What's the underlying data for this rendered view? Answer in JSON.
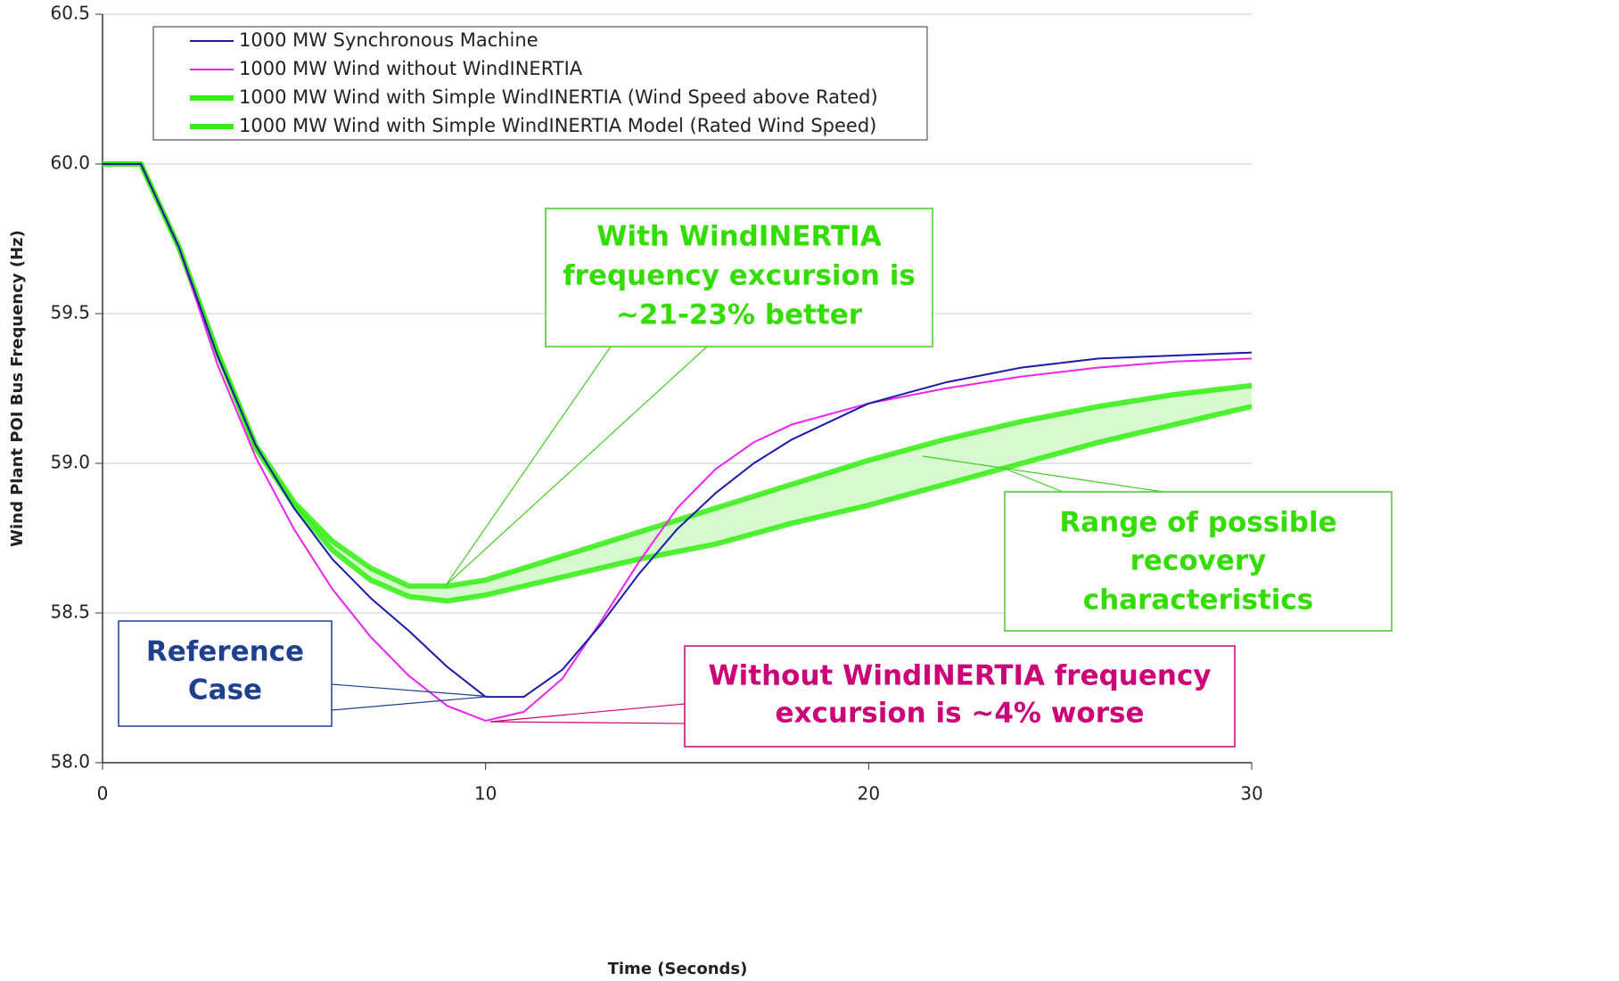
{
  "chart_data": {
    "type": "line",
    "x_label": "Time (Seconds)",
    "y_label": "Wind Plant POI Bus Frequency (Hz)",
    "x": [
      0,
      1,
      2,
      3,
      4,
      5,
      6,
      7,
      8,
      9,
      10,
      11,
      12,
      13,
      14,
      15,
      16,
      17,
      18,
      20,
      22,
      24,
      26,
      28,
      30
    ],
    "series": [
      {
        "name": "1000 MW Synchronous Machine",
        "color": "#1a1aaa",
        "values": [
          60,
          60,
          59.72,
          59.36,
          59.06,
          58.85,
          58.68,
          58.55,
          58.44,
          58.32,
          58.22,
          58.22,
          58.31,
          58.46,
          58.63,
          58.78,
          58.9,
          59.0,
          59.08,
          59.2,
          59.27,
          59.32,
          59.35,
          59.36,
          59.37
        ]
      },
      {
        "name": "1000 MW Wind without WindINERTIA",
        "color": "#ee22ee",
        "values": [
          60,
          60,
          59.72,
          59.33,
          59.02,
          58.78,
          58.58,
          58.42,
          58.29,
          58.19,
          58.14,
          58.17,
          58.28,
          58.47,
          58.67,
          58.85,
          58.98,
          59.07,
          59.13,
          59.2,
          59.25,
          59.29,
          59.32,
          59.34,
          59.35
        ]
      },
      {
        "name": "1000 MW Wind with Simple WindINERTIA (Wind Speed above Rated)",
        "color": "#33ee11",
        "values": [
          60,
          60,
          59.72,
          59.37,
          59.06,
          58.87,
          58.74,
          58.65,
          58.59,
          58.59,
          58.61,
          58.65,
          58.69,
          58.73,
          58.77,
          58.81,
          58.85,
          58.89,
          58.93,
          59.01,
          59.08,
          59.14,
          59.19,
          59.23,
          59.26
        ]
      },
      {
        "name": "1000 MW Wind with Simple WindINERTIA Model (Rated Wind Speed)",
        "color": "#33ee11",
        "values": [
          60,
          60,
          59.72,
          59.37,
          59.05,
          58.86,
          58.71,
          58.61,
          58.555,
          58.54,
          58.56,
          58.59,
          58.62,
          58.65,
          58.68,
          58.705,
          58.73,
          58.765,
          58.8,
          58.86,
          58.93,
          59.0,
          59.07,
          59.13,
          59.19
        ]
      }
    ],
    "xlim": [
      0,
      30
    ],
    "xticks": [
      0,
      10,
      20,
      30
    ],
    "ylim": [
      58.0,
      60.5
    ],
    "yticks": [
      {
        "value": 58.0,
        "label": "58.0"
      },
      58.5,
      {
        "value": 59.0,
        "label": "59.0"
      },
      59.5,
      {
        "value": 60.0,
        "label": "60.0"
      },
      60.5
    ],
    "grid": true,
    "annotations": [
      {
        "lines": [
          "With WindINERTIA",
          "frequency excursion is",
          "~21-23% better"
        ],
        "color": "#33dd00"
      },
      {
        "lines": [
          "Range of possible",
          "recovery",
          "characteristics"
        ],
        "color": "#33dd00"
      },
      {
        "lines": [
          "Reference",
          "Case"
        ],
        "color": "#1f3f8f"
      },
      {
        "lines": [
          "Without WindINERTIA frequency",
          "excursion is ~4% worse"
        ],
        "color": "#cc0077"
      }
    ]
  }
}
